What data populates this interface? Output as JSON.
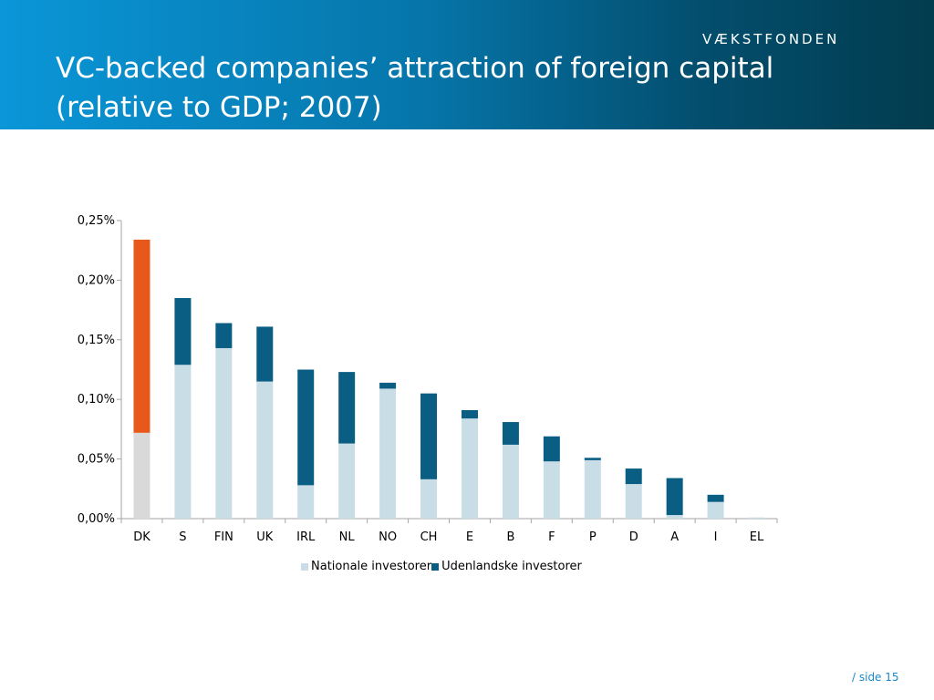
{
  "slide": {
    "title": "VC-backed companies’ attraction of foreign capital (relative to GDP; 2007)",
    "logo_text": "VÆKSTFONDEN",
    "footer": "/ side 15"
  },
  "colors": {
    "header_start": "#0a96d8",
    "header_end": "#023c4e",
    "domestic": "#c9dde6",
    "foreign": "#0a5e83",
    "highlight_domestic": "#d9d9d9",
    "highlight_foreign": "#e8581a",
    "footer_text": "#1a88c9"
  },
  "chart_data": {
    "type": "bar",
    "stacked": true,
    "categories": [
      "DK",
      "S",
      "FIN",
      "UK",
      "IRL",
      "NL",
      "NO",
      "CH",
      "E",
      "B",
      "F",
      "P",
      "D",
      "A",
      "I",
      "EL"
    ],
    "series": [
      {
        "name": "Nationale investorer",
        "values": [
          0.072,
          0.129,
          0.143,
          0.115,
          0.028,
          0.063,
          0.109,
          0.033,
          0.084,
          0.062,
          0.048,
          0.049,
          0.029,
          0.003,
          0.014,
          0.001
        ]
      },
      {
        "name": "Udenlandske investorer",
        "values": [
          0.162,
          0.056,
          0.021,
          0.046,
          0.097,
          0.06,
          0.005,
          0.072,
          0.007,
          0.019,
          0.021,
          0.002,
          0.013,
          0.031,
          0.006,
          0.0
        ]
      }
    ],
    "highlight_category": "DK",
    "y_unit": "%",
    "ylim": [
      0,
      0.25
    ],
    "yticks": [
      "0,00%",
      "0,05%",
      "0,10%",
      "0,15%",
      "0,20%",
      "0,25%"
    ],
    "ytick_values": [
      0,
      0.05,
      0.1,
      0.15,
      0.2,
      0.25
    ],
    "grid": false,
    "legend": "bottom"
  }
}
